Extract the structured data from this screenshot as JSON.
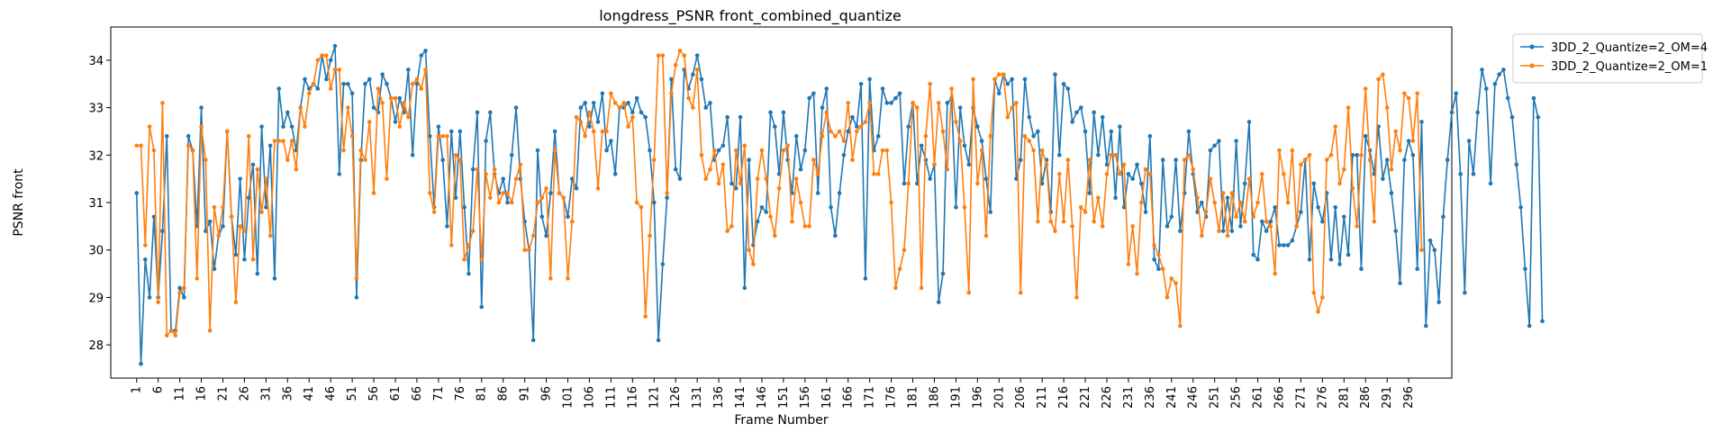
{
  "chart_data": {
    "type": "line",
    "title": "longdress_PSNR front_combined_quantize",
    "xlabel": "Frame Number",
    "ylabel": "PSNR front",
    "xlim": [
      -5,
      306
    ],
    "ylim": [
      27.3,
      34.7
    ],
    "x_start": 1,
    "x_ticks": [
      1,
      6,
      11,
      16,
      21,
      26,
      31,
      36,
      41,
      46,
      51,
      56,
      61,
      66,
      71,
      76,
      81,
      86,
      91,
      96,
      101,
      106,
      111,
      116,
      121,
      126,
      131,
      136,
      141,
      146,
      151,
      156,
      161,
      166,
      171,
      176,
      181,
      186,
      191,
      196,
      201,
      206,
      211,
      216,
      221,
      226,
      231,
      236,
      241,
      246,
      251,
      256,
      261,
      266,
      271,
      276,
      281,
      286,
      291,
      296
    ],
    "y_ticks": [
      28,
      29,
      30,
      31,
      32,
      33,
      34
    ],
    "legend_position": "outside upper right",
    "grid": false,
    "series": [
      {
        "name": "3DD_2_Quantize=2_OM=4",
        "color": "#1f77b4",
        "values": [
          31.2,
          27.6,
          29.8,
          29.0,
          30.7,
          29.0,
          30.4,
          32.4,
          28.3,
          28.3,
          29.2,
          29.0,
          32.4,
          32.1,
          30.5,
          33.0,
          30.4,
          30.6,
          29.6,
          30.3,
          30.5,
          32.5,
          30.7,
          29.9,
          31.5,
          29.8,
          31.1,
          31.8,
          29.5,
          32.6,
          30.9,
          32.2,
          29.4,
          33.4,
          32.6,
          32.9,
          32.6,
          32.1,
          33.0,
          33.6,
          33.4,
          33.5,
          33.4,
          34.1,
          33.6,
          34.0,
          34.3,
          31.6,
          33.5,
          33.5,
          33.3,
          29.0,
          31.9,
          33.5,
          33.6,
          33.0,
          32.9,
          33.7,
          33.5,
          33.2,
          32.7,
          33.2,
          32.9,
          33.8,
          32.0,
          33.5,
          34.1,
          34.2,
          32.4,
          30.9,
          32.6,
          31.9,
          30.5,
          32.5,
          31.1,
          32.5,
          30.9,
          29.5,
          31.7,
          32.9,
          28.8,
          32.3,
          32.9,
          31.6,
          31.2,
          31.5,
          31.0,
          32.0,
          33.0,
          31.5,
          30.6,
          30.0,
          28.1,
          32.1,
          30.7,
          30.3,
          31.2,
          32.5,
          31.2,
          31.1,
          30.7,
          31.5,
          31.3,
          33.0,
          33.1,
          32.6,
          33.1,
          32.7,
          33.3,
          32.1,
          32.3,
          31.6,
          33.0,
          33.0,
          33.1,
          32.9,
          33.2,
          32.9,
          32.8,
          32.1,
          31.0,
          28.1,
          29.7,
          31.1,
          33.6,
          31.7,
          31.5,
          33.8,
          33.4,
          33.7,
          34.1,
          33.6,
          33.0,
          33.1,
          31.9,
          32.1,
          32.2,
          32.8,
          31.4,
          31.3,
          32.8,
          29.2,
          31.9,
          30.1,
          30.6,
          30.9,
          30.8,
          32.9,
          32.6,
          31.6,
          32.9,
          31.9,
          31.2,
          32.4,
          31.7,
          32.1,
          33.2,
          33.3,
          31.2,
          33.0,
          33.4,
          30.9,
          30.3,
          31.2,
          32.0,
          32.5,
          32.8,
          32.6,
          33.5,
          29.4,
          33.6,
          32.1,
          32.4,
          33.4,
          33.1,
          33.1,
          33.2,
          33.3,
          31.4,
          32.6,
          33.1,
          31.4,
          32.2,
          31.9,
          31.5,
          31.8,
          28.9,
          29.5,
          33.1,
          33.2,
          30.9,
          33.0,
          32.2,
          31.8,
          33.0,
          32.6,
          32.3,
          31.5,
          30.8,
          33.6,
          33.3,
          33.7,
          33.5,
          33.6,
          31.5,
          31.9,
          33.6,
          32.8,
          32.4,
          32.5,
          31.4,
          31.9,
          30.8,
          33.7,
          32.0,
          33.5,
          33.4,
          32.7,
          32.9,
          33.0,
          32.5,
          31.2,
          32.9,
          32.0,
          32.8,
          31.8,
          32.5,
          31.1,
          32.6,
          30.9,
          31.6,
          31.5,
          31.8,
          31.4,
          30.8,
          32.4,
          29.8,
          29.6,
          31.9,
          30.5,
          30.7,
          31.9,
          30.4,
          31.2,
          32.5,
          31.6,
          30.8,
          31.0,
          30.7,
          32.1,
          32.2,
          32.3,
          30.4,
          31.1,
          30.4,
          32.3,
          30.5,
          31.4,
          32.7,
          29.9,
          29.8,
          30.6,
          30.4,
          30.6,
          30.9,
          30.1,
          30.1,
          30.1,
          30.2,
          30.5,
          30.8,
          31.9,
          29.8,
          31.4,
          30.9,
          30.6,
          31.2,
          29.8,
          30.9,
          29.7,
          30.7,
          29.9,
          32.0,
          32.0,
          29.6,
          32.4,
          32.1,
          31.6,
          32.6,
          31.5,
          31.9,
          31.2,
          30.4,
          29.3,
          31.9,
          32.3,
          32.0,
          29.6,
          32.7,
          28.4,
          30.2,
          30.0,
          28.9,
          30.7,
          31.9,
          32.9,
          33.3,
          31.6,
          29.1,
          32.3,
          31.6,
          32.9,
          33.8,
          33.4,
          31.4,
          33.5,
          33.7,
          33.8,
          33.2,
          32.8,
          31.8,
          30.9,
          29.6,
          28.4,
          33.2,
          32.8,
          28.5
        ]
      },
      {
        "name": "3DD_2_Quantize=2_OM=1",
        "color": "#ff7f0e",
        "values": [
          32.2,
          32.2,
          30.1,
          32.6,
          32.1,
          28.9,
          33.1,
          28.2,
          28.3,
          28.2,
          29.1,
          29.2,
          32.2,
          32.1,
          29.4,
          32.6,
          31.9,
          28.3,
          30.9,
          30.3,
          30.9,
          32.5,
          30.7,
          28.9,
          30.5,
          30.4,
          32.4,
          29.8,
          31.7,
          30.8,
          31.5,
          30.3,
          32.3,
          32.3,
          32.3,
          31.9,
          32.3,
          31.7,
          33.0,
          32.6,
          33.3,
          33.5,
          34.0,
          34.1,
          34.1,
          33.4,
          33.8,
          33.8,
          32.1,
          33.0,
          32.4,
          29.4,
          32.1,
          31.9,
          32.7,
          31.2,
          33.4,
          33.1,
          31.5,
          33.2,
          33.2,
          32.6,
          33.1,
          32.8,
          33.5,
          33.6,
          33.4,
          33.8,
          31.2,
          30.8,
          32.4,
          32.4,
          32.4,
          30.1,
          32.0,
          31.9,
          29.8,
          30.1,
          30.4,
          31.7,
          29.8,
          31.6,
          31.1,
          31.7,
          31.0,
          31.2,
          31.2,
          31.0,
          31.5,
          31.8,
          30.0,
          30.0,
          30.3,
          31.0,
          31.1,
          31.3,
          29.4,
          32.1,
          31.2,
          31.1,
          29.4,
          30.6,
          32.8,
          32.7,
          32.4,
          32.9,
          32.5,
          31.3,
          32.5,
          32.5,
          33.3,
          33.1,
          33.0,
          33.1,
          32.6,
          32.8,
          31.0,
          30.9,
          28.6,
          30.3,
          31.9,
          34.1,
          34.1,
          31.2,
          33.3,
          33.9,
          34.2,
          34.1,
          33.2,
          33.0,
          33.8,
          32.0,
          31.5,
          31.7,
          32.1,
          31.4,
          31.8,
          30.4,
          30.5,
          32.1,
          31.4,
          32.2,
          30.0,
          29.7,
          31.5,
          32.1,
          31.5,
          30.7,
          30.3,
          31.3,
          32.1,
          32.2,
          30.6,
          31.5,
          31.0,
          30.5,
          30.5,
          31.9,
          31.6,
          32.4,
          32.9,
          32.5,
          32.4,
          32.5,
          32.3,
          33.1,
          31.9,
          32.5,
          32.6,
          32.7,
          33.1,
          31.6,
          31.6,
          32.1,
          32.1,
          31.0,
          29.2,
          29.6,
          30.0,
          31.4,
          33.1,
          33.0,
          29.2,
          32.4,
          33.5,
          31.8,
          33.1,
          32.5,
          31.7,
          33.4,
          32.7,
          32.3,
          30.9,
          29.1,
          33.6,
          31.4,
          32.1,
          30.3,
          32.4,
          33.6,
          33.7,
          33.7,
          32.8,
          33.0,
          33.1,
          29.1,
          32.4,
          32.3,
          32.1,
          30.6,
          32.1,
          31.8,
          30.6,
          30.4,
          31.6,
          30.6,
          31.9,
          30.5,
          29.0,
          30.9,
          30.8,
          31.9,
          30.6,
          31.1,
          30.5,
          31.6,
          32.0,
          32.0,
          31.6,
          31.8,
          29.7,
          30.5,
          29.5,
          31.0,
          31.7,
          31.6,
          30.1,
          29.9,
          29.6,
          29.0,
          29.4,
          29.3,
          28.4,
          31.9,
          32.0,
          31.7,
          31.1,
          30.3,
          30.8,
          31.5,
          31.0,
          30.4,
          31.2,
          30.3,
          31.2,
          30.7,
          31.0,
          30.6,
          31.5,
          30.7,
          31.0,
          31.6,
          30.6,
          30.5,
          29.5,
          32.1,
          31.6,
          31.0,
          32.1,
          30.5,
          31.8,
          31.9,
          32.0,
          29.1,
          28.7,
          29.0,
          31.9,
          32.0,
          32.6,
          31.4,
          31.7,
          33.0,
          31.3,
          30.5,
          32.0,
          33.4,
          31.9,
          30.6,
          33.6,
          33.7,
          33.0,
          31.7,
          32.5,
          32.1,
          33.3,
          33.2,
          32.3,
          33.3,
          30.0
        ]
      }
    ]
  }
}
